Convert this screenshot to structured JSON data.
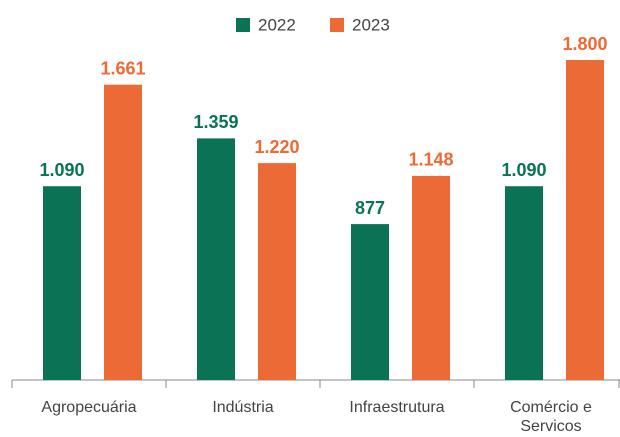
{
  "chart_data": {
    "type": "bar",
    "categories": [
      "Agropecuária",
      "Indústria",
      "Infraestrutura",
      "Comércio e Servicos"
    ],
    "series": [
      {
        "name": "2022",
        "color": "#0a7355",
        "values": [
          1090,
          1359,
          877,
          1090
        ],
        "value_labels": [
          "1.090",
          "1.359",
          "877",
          "1.090"
        ]
      },
      {
        "name": "2023",
        "color": "#eb6a35",
        "values": [
          1661,
          1220,
          1148,
          1800
        ],
        "value_labels": [
          "1.661",
          "1.220",
          "1.148",
          "1.800"
        ]
      }
    ],
    "ylim": [
      0,
      1800
    ]
  }
}
